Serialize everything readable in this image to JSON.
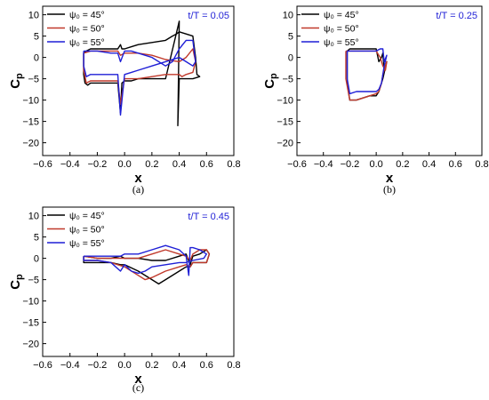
{
  "colors": {
    "series_0": "#000000",
    "series_1": "#c0392b",
    "series_2": "#1f1fd6",
    "annotation": "#1f1fd6"
  },
  "chart_data": [
    {
      "type": "line",
      "caption": "(a)",
      "annotation": "t/T = 0.05",
      "xlabel": "x",
      "ylabel": "Cp",
      "xlim": [
        -0.6,
        0.8
      ],
      "ylim": [
        -23,
        12
      ],
      "xticks": [
        "-0.6",
        "-0.4",
        "-0.2",
        "0.0",
        "0.2",
        "0.4",
        "0.6",
        "0.8"
      ],
      "yticks": [
        "10",
        "5",
        "0",
        "-5",
        "-10",
        "-15",
        "-20"
      ],
      "legend_position": "top-left",
      "grid": false,
      "series": [
        {
          "name": "ψ₀ = 45°",
          "x": [
            -0.3,
            -0.28,
            -0.25,
            -0.2,
            -0.1,
            -0.05,
            -0.03,
            -0.02,
            0.0,
            0.05,
            0.1,
            0.2,
            0.3,
            0.35,
            0.38,
            0.4,
            0.45,
            0.5,
            0.52,
            0.53,
            0.55,
            0.5,
            0.45,
            0.42,
            0.4,
            0.39,
            0.4,
            0.3,
            0.2,
            0.1,
            0.05,
            0.0,
            -0.02,
            -0.03,
            -0.05,
            -0.1,
            -0.2,
            -0.25,
            -0.27,
            -0.29,
            -0.3,
            -0.3
          ],
          "y": [
            1.0,
            1.5,
            2.0,
            2.0,
            2.0,
            2.0,
            3.0,
            2.0,
            2.0,
            2.5,
            3.0,
            3.5,
            4.0,
            5.0,
            5.5,
            6.0,
            5.5,
            5.0,
            0.0,
            -4.0,
            -4.5,
            -5.0,
            -5.0,
            -5.0,
            -5.0,
            -16.0,
            8.5,
            -5.0,
            -5.0,
            -5.0,
            -5.5,
            -5.5,
            -6.0,
            -13.0,
            -6.0,
            -6.0,
            -6.0,
            -6.0,
            -6.5,
            -6.0,
            -4.0,
            1.0
          ]
        },
        {
          "name": "ψ₀ = 50°",
          "x": [
            -0.3,
            -0.25,
            -0.2,
            -0.1,
            -0.05,
            -0.03,
            0.0,
            0.05,
            0.1,
            0.2,
            0.3,
            0.4,
            0.45,
            0.5,
            0.52,
            0.5,
            0.45,
            0.42,
            0.4,
            0.3,
            0.2,
            0.1,
            0.05,
            0.0,
            -0.03,
            -0.05,
            -0.1,
            -0.2,
            -0.25,
            -0.28,
            -0.3,
            -0.3
          ],
          "y": [
            1.0,
            1.5,
            1.5,
            1.5,
            1.5,
            0.5,
            1.0,
            1.0,
            1.0,
            0.5,
            -0.5,
            -1.0,
            0.0,
            2.0,
            -1.0,
            -3.5,
            -4.0,
            -4.5,
            -4.0,
            -4.0,
            -4.5,
            -5.0,
            -5.0,
            -5.0,
            -11.0,
            -5.5,
            -5.5,
            -5.5,
            -5.5,
            -6.0,
            -3.0,
            1.0
          ]
        },
        {
          "name": "ψ₀ = 55°",
          "x": [
            -0.3,
            -0.25,
            -0.2,
            -0.1,
            -0.05,
            -0.03,
            0.0,
            0.05,
            0.1,
            0.2,
            0.3,
            0.35,
            0.4,
            0.45,
            0.5,
            0.52,
            0.5,
            0.45,
            0.4,
            0.3,
            0.2,
            0.1,
            0.05,
            0.0,
            -0.03,
            -0.05,
            -0.1,
            -0.2,
            -0.25,
            -0.28,
            -0.3,
            -0.3
          ],
          "y": [
            1.5,
            1.5,
            1.5,
            1.0,
            1.0,
            -1.0,
            1.5,
            1.5,
            1.0,
            0.0,
            -2.0,
            -1.0,
            2.0,
            4.0,
            4.0,
            -1.0,
            -2.0,
            -1.0,
            0.0,
            -1.0,
            -2.0,
            -3.0,
            -3.5,
            -4.0,
            -13.5,
            -4.0,
            -4.0,
            -4.0,
            -4.0,
            -4.5,
            -2.0,
            1.5
          ]
        }
      ]
    },
    {
      "type": "line",
      "caption": "(b)",
      "annotation": "t/T = 0.25",
      "xlabel": "x",
      "ylabel": "Cp",
      "xlim": [
        -0.6,
        0.8
      ],
      "ylim": [
        -23,
        12
      ],
      "xticks": [
        "-0.6",
        "-0.4",
        "-0.2",
        "0.0",
        "0.2",
        "0.4",
        "0.6",
        "0.8"
      ],
      "yticks": [
        "10",
        "5",
        "0",
        "-5",
        "-10",
        "-15",
        "-20"
      ],
      "legend_position": "top-left",
      "grid": false,
      "series": [
        {
          "name": "ψ₀ = 45°",
          "x": [
            -0.22,
            -0.2,
            -0.15,
            -0.1,
            -0.05,
            0.0,
            0.02,
            0.04,
            0.05,
            0.06,
            0.08,
            0.05,
            0.04,
            0.02,
            0.0,
            -0.05,
            -0.1,
            -0.15,
            -0.18,
            -0.2,
            -0.22,
            -0.22
          ],
          "y": [
            1.5,
            2.0,
            2.0,
            2.0,
            2.0,
            2.0,
            -1.0,
            0.0,
            1.0,
            -3.0,
            -1.0,
            -5.0,
            -6.0,
            -8.0,
            -9.0,
            -9.0,
            -9.5,
            -10.0,
            -10.0,
            -10.0,
            -6.0,
            1.5
          ]
        },
        {
          "name": "ψ₀ = 50°",
          "x": [
            -0.23,
            -0.2,
            -0.15,
            -0.1,
            -0.05,
            0.0,
            0.03,
            0.05,
            0.07,
            0.08,
            0.05,
            0.04,
            0.02,
            0.0,
            -0.05,
            -0.1,
            -0.15,
            -0.2,
            -0.23,
            -0.23
          ],
          "y": [
            1.5,
            1.5,
            1.5,
            1.5,
            1.5,
            1.5,
            0.0,
            -2.0,
            -3.0,
            -1.0,
            -4.0,
            -6.0,
            -8.0,
            -8.5,
            -9.0,
            -9.5,
            -10.0,
            -10.0,
            -5.0,
            1.5
          ]
        },
        {
          "name": "ψ₀ = 55°",
          "x": [
            -0.22,
            -0.2,
            -0.1,
            0.0,
            0.03,
            0.05,
            0.06,
            0.08,
            0.06,
            0.05,
            0.04,
            0.02,
            0.0,
            -0.05,
            -0.1,
            -0.15,
            -0.2,
            -0.22,
            -0.22
          ],
          "y": [
            1.5,
            1.5,
            1.5,
            1.5,
            2.0,
            2.0,
            -1.0,
            0.5,
            -2.0,
            -4.0,
            -6.0,
            -7.5,
            -8.0,
            -8.0,
            -8.0,
            -8.0,
            -8.5,
            -5.0,
            1.5
          ]
        }
      ]
    },
    {
      "type": "line",
      "caption": "(c)",
      "annotation": "t/T = 0.45",
      "xlabel": "x",
      "ylabel": "Cp",
      "xlim": [
        -0.6,
        0.8
      ],
      "ylim": [
        -23,
        12
      ],
      "xticks": [
        "-0.6",
        "-0.4",
        "-0.2",
        "0.0",
        "0.2",
        "0.4",
        "0.6",
        "0.8"
      ],
      "yticks": [
        "10",
        "5",
        "0",
        "-5",
        "-10",
        "-15",
        "-20"
      ],
      "legend_position": "top-left",
      "grid": false,
      "series": [
        {
          "name": "ψ₀ = 45°",
          "x": [
            -0.3,
            -0.2,
            -0.1,
            -0.03,
            0.0,
            0.1,
            0.2,
            0.3,
            0.4,
            0.45,
            0.48,
            0.5,
            0.55,
            0.6,
            0.62,
            0.6,
            0.5,
            0.48,
            0.45,
            0.4,
            0.3,
            0.25,
            0.2,
            0.1,
            0.0,
            -0.03,
            -0.1,
            -0.2,
            -0.3,
            -0.3
          ],
          "y": [
            0.5,
            0.0,
            0.0,
            0.5,
            0.0,
            0.0,
            -0.5,
            -0.5,
            0.5,
            1.0,
            -1.5,
            0.5,
            1.0,
            2.0,
            1.0,
            -1.0,
            -1.0,
            -2.0,
            -2.0,
            -3.0,
            -5.0,
            -6.0,
            -5.0,
            -3.0,
            -1.5,
            -1.5,
            -1.0,
            -1.0,
            -1.0,
            0.5
          ]
        },
        {
          "name": "ψ₀ = 50°",
          "x": [
            -0.3,
            -0.2,
            -0.1,
            0.0,
            0.1,
            0.2,
            0.3,
            0.4,
            0.45,
            0.48,
            0.5,
            0.55,
            0.6,
            0.62,
            0.6,
            0.5,
            0.48,
            0.45,
            0.4,
            0.3,
            0.2,
            0.15,
            0.1,
            0.0,
            -0.1,
            -0.2,
            -0.3,
            -0.3
          ],
          "y": [
            0.5,
            0.0,
            0.0,
            0.0,
            0.0,
            1.0,
            2.0,
            1.0,
            0.5,
            -0.5,
            1.0,
            2.0,
            2.0,
            1.0,
            -1.0,
            -1.0,
            -2.0,
            -1.5,
            -2.0,
            -3.0,
            -4.5,
            -5.0,
            -4.0,
            -2.0,
            -1.0,
            -0.5,
            -0.5,
            0.5
          ]
        },
        {
          "name": "ψ₀ = 55°",
          "x": [
            -0.3,
            -0.2,
            -0.1,
            -0.03,
            0.0,
            0.1,
            0.2,
            0.3,
            0.4,
            0.45,
            0.47,
            0.48,
            0.5,
            0.55,
            0.6,
            0.58,
            0.5,
            0.45,
            0.4,
            0.3,
            0.2,
            0.15,
            0.1,
            0.05,
            0.0,
            -0.03,
            -0.1,
            -0.2,
            -0.3,
            -0.3
          ],
          "y": [
            0.5,
            0.5,
            0.5,
            0.5,
            1.0,
            1.0,
            2.0,
            3.0,
            2.0,
            0.5,
            -4.0,
            2.5,
            2.5,
            2.0,
            1.0,
            0.0,
            -0.5,
            -1.0,
            -1.0,
            -1.5,
            -2.0,
            -3.0,
            -3.5,
            -3.0,
            -1.5,
            -3.0,
            -1.0,
            -0.5,
            -0.5,
            0.5
          ]
        }
      ]
    }
  ]
}
